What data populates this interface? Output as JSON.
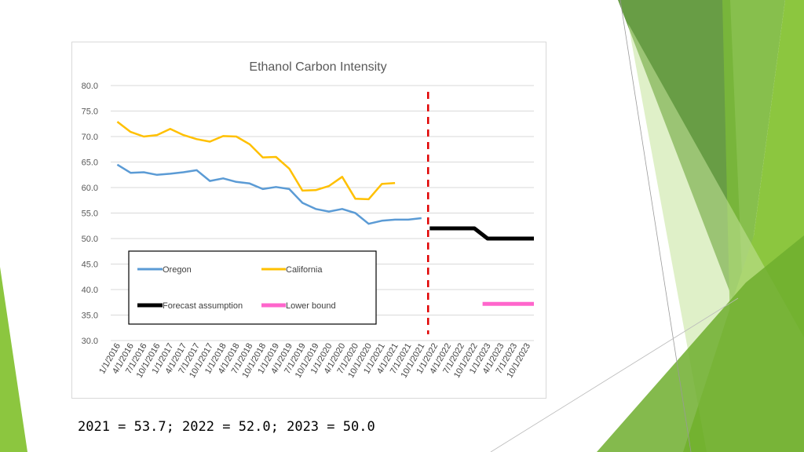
{
  "caption": "2021 = 53.7; 2022 = 52.0; 2023 = 50.0",
  "colors": {
    "oregon": "#5b9bd5",
    "california": "#ffc000",
    "forecast": "#000000",
    "lower_bound": "#ff66cc",
    "divider": "#e00000",
    "green_dark": "#4e8c25",
    "green_mid": "#7ab83a",
    "green_light": "#c5e39a"
  },
  "chart_data": {
    "type": "line",
    "title": "Ethanol Carbon Intensity",
    "xlabel": "",
    "ylabel": "",
    "ylim": [
      30,
      80
    ],
    "yticks": [
      "30.0",
      "35.0",
      "40.0",
      "45.0",
      "50.0",
      "55.0",
      "60.0",
      "65.0",
      "70.0",
      "75.0",
      "80.0"
    ],
    "grid": true,
    "legend_position": "lower-left inside plot",
    "categories": [
      "1/1/2016",
      "4/1/2016",
      "7/1/2016",
      "10/1/2016",
      "1/1/2017",
      "4/1/2017",
      "7/1/2017",
      "10/1/2017",
      "1/1/2018",
      "4/1/2018",
      "7/1/2018",
      "10/1/2018",
      "1/1/2019",
      "4/1/2019",
      "7/1/2019",
      "10/1/2019",
      "1/1/2020",
      "4/1/2020",
      "7/1/2020",
      "10/1/2020",
      "1/1/2021",
      "4/1/2021",
      "7/1/2021",
      "10/1/2021",
      "1/1/2022",
      "4/1/2022",
      "7/1/2022",
      "10/1/2022",
      "1/1/2023",
      "4/1/2023",
      "7/1/2023",
      "10/1/2023"
    ],
    "vertical_marker": "1/1/2022",
    "series": [
      {
        "name": "Oregon",
        "color": "#5b9bd5",
        "values": [
          64.5,
          62.9,
          63.0,
          62.5,
          62.7,
          63.0,
          63.4,
          61.3,
          61.8,
          61.1,
          60.8,
          59.7,
          60.1,
          59.7,
          57.0,
          55.8,
          55.3,
          55.8,
          55.0,
          52.9,
          53.5,
          53.7,
          53.7,
          54.0,
          null,
          null,
          null,
          null,
          null,
          null,
          null,
          null
        ]
      },
      {
        "name": "California",
        "color": "#ffc000",
        "values": [
          72.9,
          70.9,
          70.0,
          70.3,
          71.5,
          70.3,
          69.5,
          69.0,
          70.1,
          70.0,
          68.5,
          65.9,
          66.0,
          63.7,
          59.4,
          59.5,
          60.3,
          62.1,
          57.8,
          57.7,
          60.7,
          60.9,
          null,
          null,
          null,
          null,
          null,
          null,
          null,
          null,
          null,
          null
        ]
      },
      {
        "name": "Forecast assumption",
        "color": "#000000",
        "values": [
          null,
          null,
          null,
          null,
          null,
          null,
          null,
          null,
          null,
          null,
          null,
          null,
          null,
          null,
          null,
          null,
          null,
          null,
          null,
          null,
          null,
          null,
          null,
          null,
          52.0,
          52.0,
          52.0,
          52.0,
          50.0,
          50.0,
          50.0,
          50.0
        ]
      },
      {
        "name": "Lower bound",
        "color": "#ff66cc",
        "values": [
          null,
          null,
          null,
          null,
          null,
          null,
          null,
          null,
          null,
          null,
          null,
          null,
          null,
          null,
          null,
          null,
          null,
          null,
          null,
          null,
          null,
          null,
          null,
          null,
          null,
          null,
          null,
          null,
          37.2,
          37.2,
          37.2,
          37.2
        ]
      }
    ]
  }
}
